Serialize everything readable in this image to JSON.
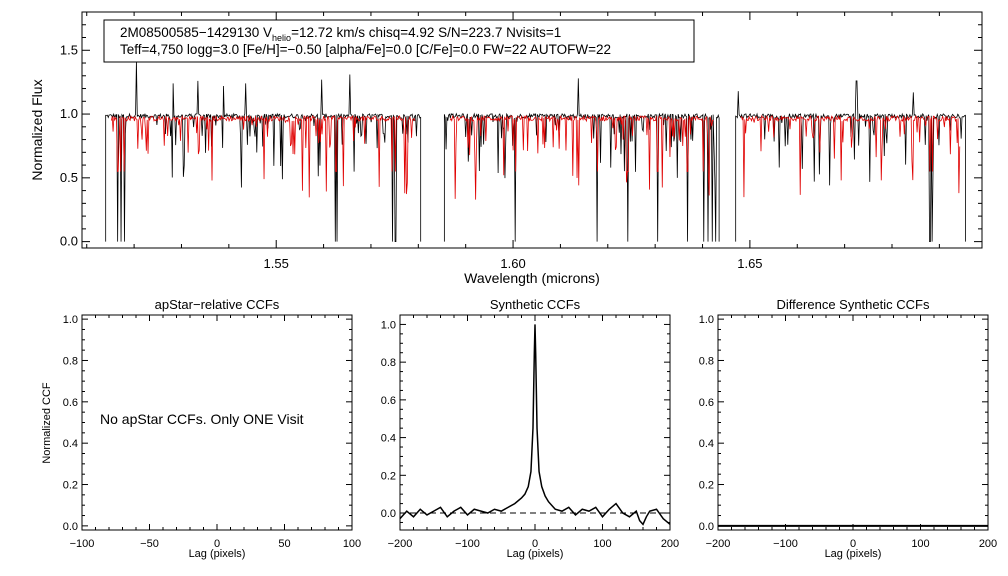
{
  "chart_data": [
    {
      "type": "line",
      "title": "",
      "xlabel": "Wavelength (microns)",
      "ylabel": "Normalized Flux",
      "xlim": [
        1.509,
        1.699
      ],
      "ylim": [
        -0.05,
        1.8
      ],
      "xticks": [
        1.55,
        1.6,
        1.65
      ],
      "xtick_labels": [
        "1.55",
        "1.60",
        "1.65"
      ],
      "yticks": [
        0.0,
        0.5,
        1.0,
        1.5
      ],
      "ytick_labels": [
        "0.0",
        "0.5",
        "1.0",
        "1.5"
      ],
      "info_line1": {
        "star": "2M08500585−1429130",
        "v": "V",
        "helio_sub": "helio",
        "rest": "=12.72 km/s  chisq=4.92  S/N=223.7  Nvisits=1"
      },
      "info_line2": "Teff=4,750 logg=3.0 [Fe/H]=−0.50 [alpha/Fe]=0.0 [C/Fe]=0.0 FW=22 AUTOFW=22",
      "chips": [
        [
          1.514,
          1.5805
        ],
        [
          1.5855,
          1.6435
        ],
        [
          1.647,
          1.6955
        ]
      ],
      "deep_lines": [
        1.5165,
        1.5172,
        1.5179,
        1.5625,
        1.5628,
        1.5745,
        1.5752,
        1.5805,
        1.6005,
        1.6178,
        1.6242,
        1.6305,
        1.6368,
        1.6402,
        1.6412,
        1.6421,
        1.6428,
        1.6435,
        1.647,
        1.688,
        1.6885,
        1.6955
      ],
      "emission_spikes": [
        [
          1.5205,
          1.42
        ],
        [
          1.5283,
          1.24
        ],
        [
          1.5335,
          1.26
        ],
        [
          1.5388,
          1.22
        ],
        [
          1.5436,
          1.24
        ],
        [
          1.5596,
          1.27
        ],
        [
          1.5655,
          1.31
        ],
        [
          1.6138,
          1.28
        ],
        [
          1.6475,
          1.18
        ],
        [
          1.6725,
          1.26
        ],
        [
          1.6845,
          1.17
        ]
      ],
      "series": [
        {
          "name": "",
          "color": "#000000",
          "role": "observed"
        },
        {
          "name": "",
          "color": "#e00000",
          "role": "model"
        }
      ]
    },
    {
      "type": "line",
      "title": "apStar−relative CCFs",
      "xlabel": "Lag (pixels)",
      "ylabel": "Normalized CCF",
      "xlim": [
        -100,
        100
      ],
      "ylim": [
        -0.02,
        1.02
      ],
      "xticks": [
        -100,
        -50,
        0,
        50,
        100
      ],
      "xtick_labels": [
        "−100",
        "−50",
        "0",
        "50",
        "100"
      ],
      "yticks": [
        0.0,
        0.2,
        0.4,
        0.6,
        0.8,
        1.0
      ],
      "ytick_labels": [
        "0.0",
        "0.2",
        "0.4",
        "0.6",
        "0.8",
        "1.0"
      ],
      "annotation": "No apStar CCFs.  Only ONE Visit",
      "series": []
    },
    {
      "type": "line",
      "title": "Synthetic CCFs",
      "xlabel": "Lag (pixels)",
      "ylabel": "",
      "xlim": [
        -200,
        200
      ],
      "ylim": [
        -0.09,
        1.05
      ],
      "xticks": [
        -200,
        -100,
        0,
        100,
        200
      ],
      "xtick_labels": [
        "−200",
        "−100",
        "0",
        "100",
        "200"
      ],
      "yticks": [
        0.0,
        0.2,
        0.4,
        0.6,
        0.8,
        1.0
      ],
      "ytick_labels": [
        "0.0",
        "0.2",
        "0.4",
        "0.6",
        "0.8",
        "1.0"
      ],
      "reference_line": 0.0,
      "series": [
        {
          "name": "",
          "color": "#000000",
          "x": [
            -200,
            -190,
            -180,
            -170,
            -160,
            -150,
            -140,
            -130,
            -120,
            -110,
            -100,
            -90,
            -80,
            -70,
            -60,
            -50,
            -40,
            -30,
            -20,
            -15,
            -10,
            -6,
            -3,
            -1,
            0,
            1,
            3,
            6,
            10,
            15,
            20,
            30,
            40,
            50,
            60,
            70,
            80,
            90,
            100,
            110,
            120,
            130,
            140,
            150,
            155,
            160,
            165,
            170,
            180,
            190,
            200
          ],
          "y": [
            -0.03,
            0.01,
            -0.02,
            0.02,
            -0.01,
            0.01,
            0.03,
            -0.02,
            0.01,
            0.03,
            -0.01,
            0.02,
            0.01,
            0.0,
            0.02,
            0.01,
            0.03,
            0.05,
            0.08,
            0.1,
            0.14,
            0.22,
            0.45,
            0.85,
            1.0,
            0.85,
            0.45,
            0.22,
            0.14,
            0.09,
            0.06,
            0.02,
            0.01,
            0.03,
            -0.01,
            0.02,
            0.01,
            0.03,
            -0.02,
            0.02,
            0.05,
            0.0,
            -0.02,
            0.01,
            -0.04,
            -0.06,
            -0.02,
            0.01,
            0.02,
            -0.03,
            -0.06
          ]
        }
      ]
    },
    {
      "type": "line",
      "title": "Difference Synthetic CCFs",
      "xlabel": "Lag (pixels)",
      "ylabel": "",
      "xlim": [
        -200,
        200
      ],
      "ylim": [
        -0.02,
        1.02
      ],
      "xticks": [
        -200,
        -100,
        0,
        100,
        200
      ],
      "xtick_labels": [
        "−200",
        "−100",
        "0",
        "100",
        "200"
      ],
      "yticks": [
        0.0,
        0.2,
        0.4,
        0.6,
        0.8,
        1.0
      ],
      "ytick_labels": [
        "0.0",
        "0.2",
        "0.4",
        "0.6",
        "0.8",
        "1.0"
      ],
      "series": [
        {
          "name": "",
          "color": "#000000",
          "x": [
            -200,
            200
          ],
          "y": [
            0.0,
            0.0
          ]
        }
      ]
    }
  ]
}
